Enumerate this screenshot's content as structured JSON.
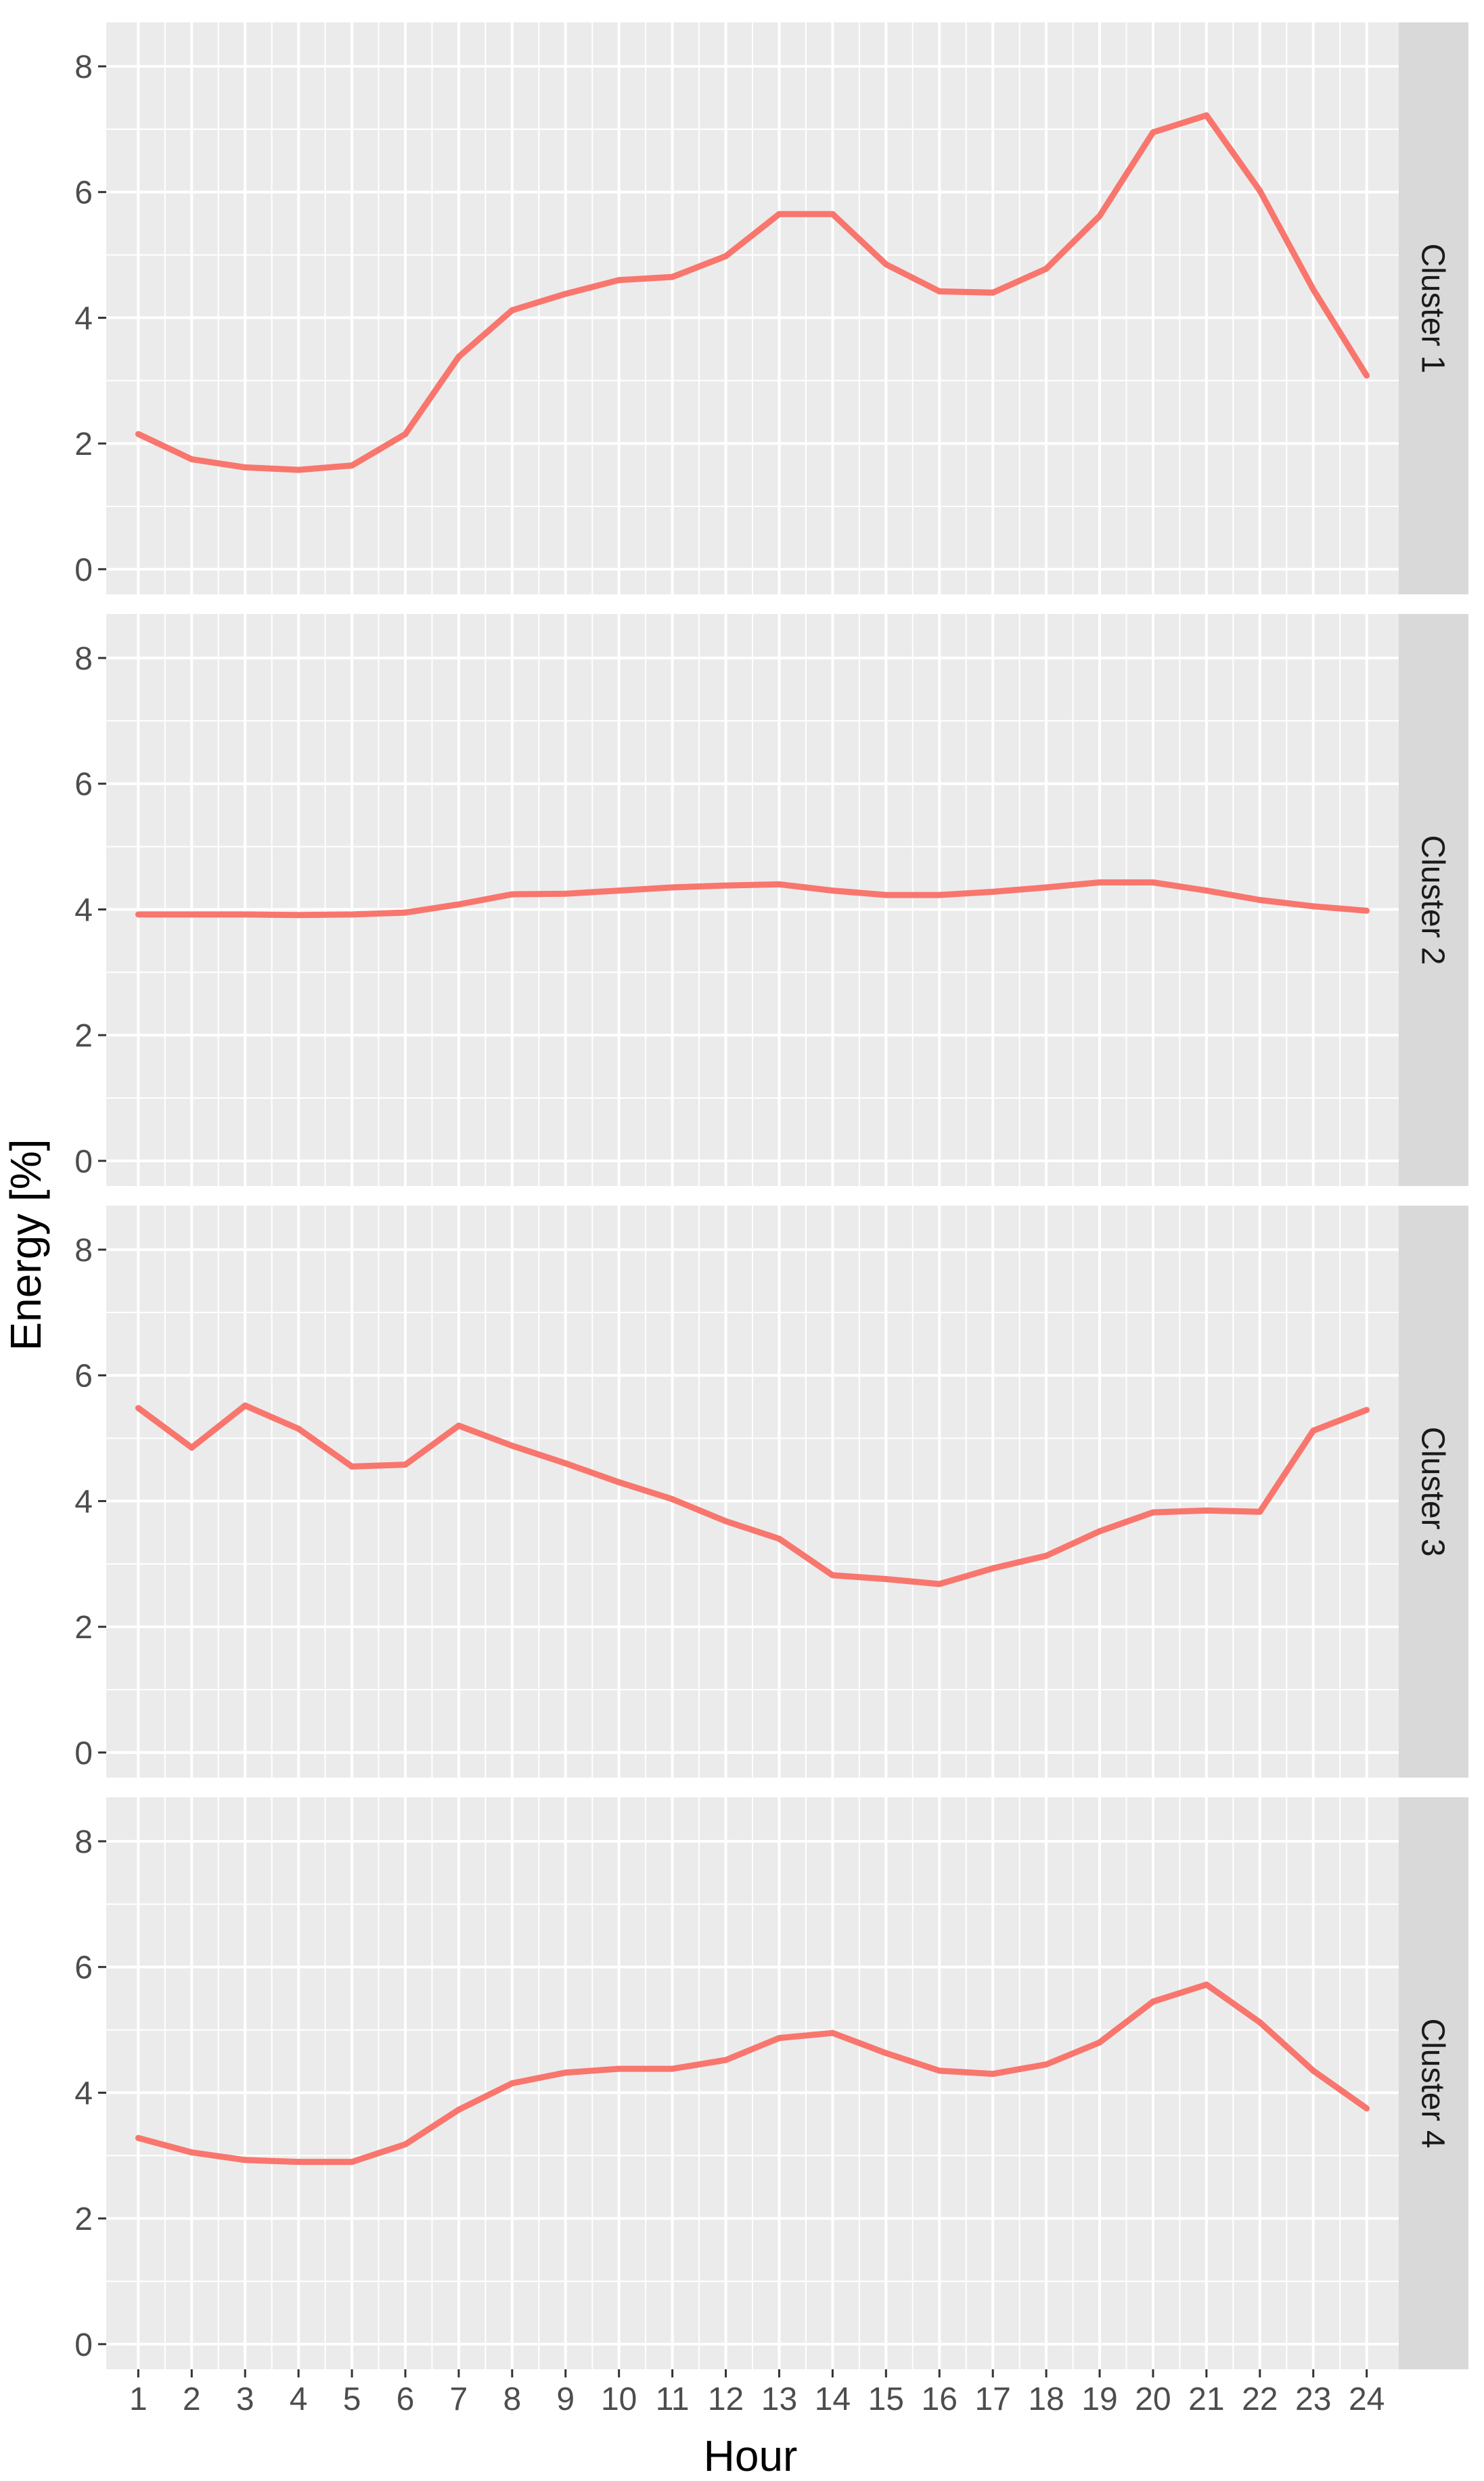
{
  "chart_data": {
    "type": "line",
    "xlabel": "Hour",
    "ylabel": "Energy [%]",
    "x": [
      1,
      2,
      3,
      4,
      5,
      6,
      7,
      8,
      9,
      10,
      11,
      12,
      13,
      14,
      15,
      16,
      17,
      18,
      19,
      20,
      21,
      22,
      23,
      24
    ],
    "ylim": [
      -0.4,
      8.7
    ],
    "yticks": [
      0,
      2,
      4,
      6,
      8
    ],
    "grid": true,
    "facet": "row",
    "line_color": "#F8766D",
    "panel_background": "#EBEBEB",
    "strip_background": "#D9D9D9",
    "series": [
      {
        "name": "Cluster 1",
        "values": [
          2.15,
          1.75,
          1.62,
          1.58,
          1.65,
          2.15,
          3.38,
          4.12,
          4.38,
          4.6,
          4.65,
          4.98,
          5.65,
          5.65,
          4.85,
          4.42,
          4.4,
          4.78,
          5.62,
          6.95,
          7.22,
          6.02,
          4.45,
          3.08
        ]
      },
      {
        "name": "Cluster 2",
        "values": [
          3.92,
          3.92,
          3.92,
          3.91,
          3.92,
          3.95,
          4.08,
          4.24,
          4.25,
          4.3,
          4.35,
          4.38,
          4.4,
          4.3,
          4.23,
          4.23,
          4.28,
          4.35,
          4.43,
          4.43,
          4.3,
          4.15,
          4.05,
          3.98
        ]
      },
      {
        "name": "Cluster 3",
        "values": [
          5.48,
          4.85,
          5.52,
          5.15,
          4.55,
          4.58,
          5.2,
          4.88,
          4.6,
          4.3,
          4.03,
          3.68,
          3.4,
          2.82,
          2.76,
          2.68,
          2.93,
          3.13,
          3.52,
          3.82,
          3.85,
          3.83,
          5.12,
          5.45
        ]
      },
      {
        "name": "Cluster 4",
        "values": [
          3.28,
          3.05,
          2.93,
          2.9,
          2.9,
          3.18,
          3.73,
          4.15,
          4.32,
          4.38,
          4.38,
          4.52,
          4.87,
          4.95,
          4.63,
          4.35,
          4.3,
          4.45,
          4.8,
          5.45,
          5.72,
          5.12,
          4.35,
          3.75
        ]
      }
    ]
  }
}
